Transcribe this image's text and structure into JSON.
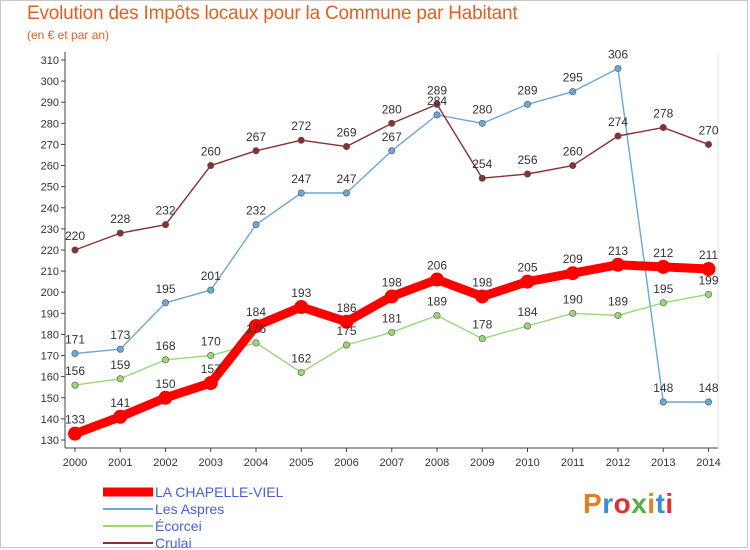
{
  "header": {
    "title": "Evolution des Impôts locaux pour la Commune par Habitant",
    "subtitle": "(en € et par an)"
  },
  "logo": {
    "text": "Proxiti",
    "colors": [
      "#e08020",
      "#3a8fd0",
      "#e03030",
      "#50b040",
      "#e08020",
      "#3a8fd0",
      "#e03030"
    ]
  },
  "chart_data": {
    "type": "line",
    "x": [
      "2000",
      "2001",
      "2002",
      "2003",
      "2004",
      "2005",
      "2006",
      "2007",
      "2008",
      "2009",
      "2010",
      "2011",
      "2012",
      "2013",
      "2014"
    ],
    "ylim": [
      130,
      310
    ],
    "yticks": [
      130,
      140,
      150,
      160,
      170,
      180,
      190,
      200,
      210,
      220,
      230,
      240,
      250,
      260,
      270,
      280,
      290,
      300,
      310
    ],
    "grid": false,
    "legend": "bottom-left",
    "series": [
      {
        "name": "LA CHAPELLE-VIEL",
        "color": "#ff0000",
        "values": [
          133,
          141,
          150,
          157,
          184,
          193,
          186,
          198,
          206,
          198,
          205,
          209,
          213,
          212,
          211
        ]
      },
      {
        "name": "Les Aspres",
        "color": "#6aa8d8",
        "values": [
          171,
          173,
          195,
          201,
          232,
          247,
          247,
          267,
          284,
          280,
          289,
          295,
          306,
          148,
          148
        ]
      },
      {
        "name": "Écorcei",
        "color": "#98d878",
        "values": [
          156,
          159,
          168,
          170,
          176,
          162,
          175,
          181,
          189,
          178,
          184,
          190,
          189,
          195,
          199
        ]
      },
      {
        "name": "Crulai",
        "color": "#8a3030",
        "values": [
          220,
          228,
          232,
          260,
          267,
          272,
          269,
          280,
          289,
          254,
          256,
          260,
          274,
          278,
          270
        ]
      }
    ]
  }
}
